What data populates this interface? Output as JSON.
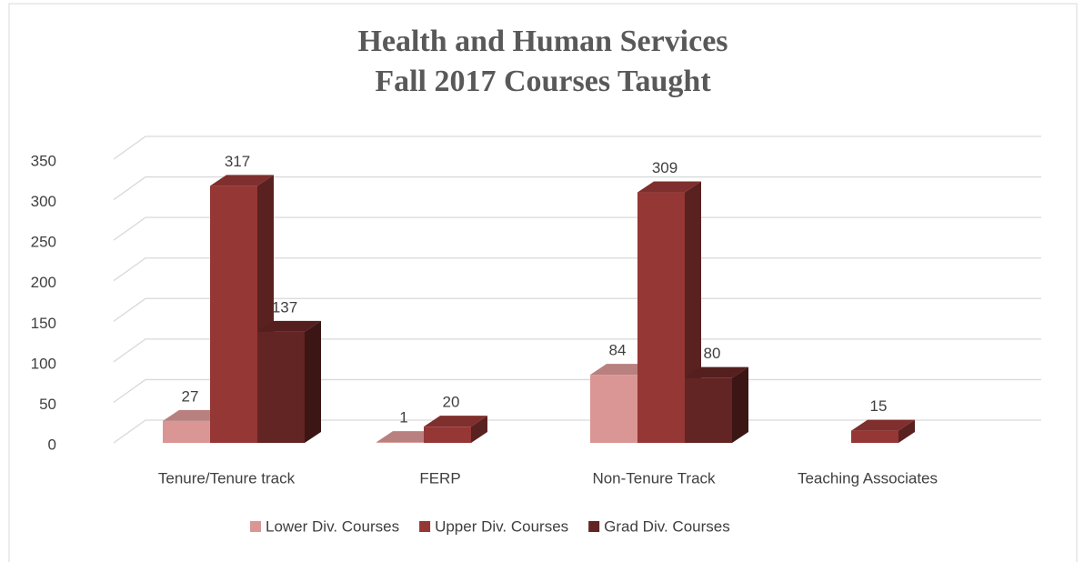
{
  "chart_data": {
    "type": "bar3d",
    "title": "Health and Human Services",
    "subtitle": "Fall 2017 Courses Taught",
    "categories": [
      "Tenure/Tenure track",
      "FERP",
      "Non-Tenure Track",
      "Teaching Associates"
    ],
    "series": [
      {
        "name": "Lower Div. Courses",
        "color": "#d99694",
        "values": [
          27,
          1,
          84,
          null
        ]
      },
      {
        "name": "Upper Div. Courses",
        "color": "#953735",
        "values": [
          317,
          20,
          309,
          15
        ]
      },
      {
        "name": "Grad Div. Courses",
        "color": "#632523",
        "values": [
          137,
          null,
          80,
          null
        ]
      }
    ],
    "ylim": [
      0,
      350
    ],
    "yticks": [
      0,
      50,
      100,
      150,
      200,
      250,
      300,
      350
    ],
    "grid": true,
    "legend": "bottom"
  }
}
